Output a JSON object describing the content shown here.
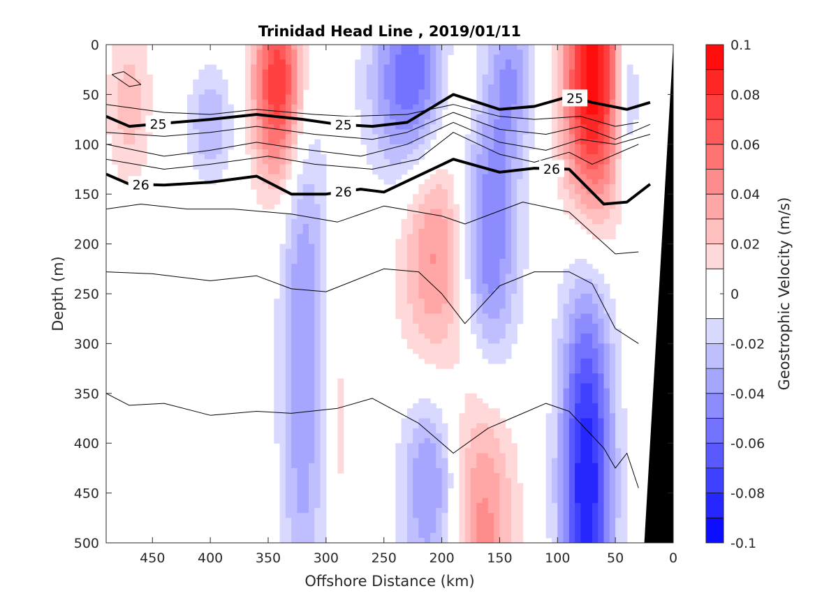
{
  "chart_data": {
    "type": "contour-section",
    "title": "Trinidad Head Line , 2019/01/11",
    "xlabel": "Offshore Distance (km)",
    "ylabel": "Depth (m)",
    "xlim": [
      490,
      0
    ],
    "ylim": [
      0,
      500
    ],
    "x_reversed": true,
    "y_reversed": true,
    "x_ticks": [
      450,
      400,
      350,
      300,
      250,
      200,
      150,
      100,
      50,
      0
    ],
    "y_ticks": [
      0,
      50,
      100,
      150,
      200,
      250,
      300,
      350,
      400,
      450,
      500
    ],
    "colorbar": {
      "label": "Geostrophic Velocity (m/s)",
      "range": [
        -0.1,
        0.1
      ],
      "ticks": [
        0.1,
        0.08,
        0.06,
        0.04,
        0.02,
        0,
        -0.02,
        -0.04,
        -0.06,
        -0.08,
        -0.1
      ],
      "tick_labels": [
        "0.1",
        "0.08",
        "0.06",
        "0.04",
        "0.02",
        "0",
        "-0.02",
        "-0.04",
        "-0.06",
        "-0.08",
        "-0.1"
      ],
      "levels": [
        -0.1,
        -0.09,
        -0.08,
        -0.07,
        -0.06,
        -0.05,
        -0.04,
        -0.03,
        -0.02,
        -0.01,
        0.01,
        0.02,
        0.03,
        0.04,
        0.05,
        0.06,
        0.07,
        0.08,
        0.09,
        0.1
      ],
      "negative_color": "#0000ff",
      "positive_color": "#ff0000",
      "zero_color": "#ffffff"
    },
    "velocity_cores": [
      {
        "x": 470,
        "y": 60,
        "sx": 14,
        "sy": 60,
        "v": 0.025
      },
      {
        "x": 420,
        "y": 330,
        "sx": 6,
        "sy": 30,
        "v": 0.008
      },
      {
        "x": 400,
        "y": 80,
        "sx": 14,
        "sy": 40,
        "v": -0.03
      },
      {
        "x": 340,
        "y": 40,
        "sx": 16,
        "sy": 70,
        "v": 0.085
      },
      {
        "x": 320,
        "y": 300,
        "sx": 14,
        "sy": 230,
        "v": -0.04
      },
      {
        "x": 290,
        "y": 380,
        "sx": 8,
        "sy": 90,
        "v": 0.015
      },
      {
        "x": 225,
        "y": 40,
        "sx": 25,
        "sy": 70,
        "v": -0.065
      },
      {
        "x": 205,
        "y": 200,
        "sx": 22,
        "sy": 100,
        "v": 0.045
      },
      {
        "x": 185,
        "y": 40,
        "sx": 12,
        "sy": 35,
        "v": 0.02
      },
      {
        "x": 160,
        "y": 200,
        "sx": 18,
        "sy": 100,
        "v": -0.055
      },
      {
        "x": 140,
        "y": 30,
        "sx": 14,
        "sy": 60,
        "v": -0.035
      },
      {
        "x": 210,
        "y": 440,
        "sx": 18,
        "sy": 75,
        "v": -0.045
      },
      {
        "x": 165,
        "y": 480,
        "sx": 20,
        "sy": 110,
        "v": 0.045
      },
      {
        "x": 70,
        "y": 40,
        "sx": 18,
        "sy": 100,
        "v": 0.1
      },
      {
        "x": 75,
        "y": 440,
        "sx": 16,
        "sy": 150,
        "v": -0.09
      },
      {
        "x": 40,
        "y": 50,
        "sx": 8,
        "sy": 60,
        "v": -0.035
      }
    ],
    "isopycnals": [
      {
        "label": "25",
        "bold": true,
        "x": [
          490,
          470,
          450,
          400,
          360,
          320,
          290,
          260,
          230,
          190,
          150,
          120,
          90,
          70,
          40,
          20
        ],
        "y": [
          72,
          82,
          80,
          75,
          70,
          75,
          80,
          82,
          78,
          50,
          65,
          62,
          52,
          58,
          65,
          58
        ]
      },
      {
        "label": "26",
        "bold": true,
        "x": [
          490,
          470,
          440,
          400,
          360,
          330,
          300,
          270,
          250,
          190,
          150,
          120,
          90,
          60,
          40,
          20
        ],
        "y": [
          130,
          140,
          141,
          138,
          132,
          150,
          150,
          145,
          148,
          115,
          128,
          124,
          125,
          160,
          158,
          140
        ]
      },
      {
        "label": "",
        "bold": false,
        "x": [
          490,
          440,
          400,
          360,
          310,
          280,
          230,
          190,
          150,
          120,
          80,
          50,
          30
        ],
        "y": [
          60,
          68,
          70,
          65,
          70,
          72,
          70,
          60,
          72,
          75,
          72,
          82,
          78
        ]
      },
      {
        "label": "",
        "bold": false,
        "x": [
          490,
          440,
          400,
          360,
          310,
          260,
          230,
          190,
          150,
          110,
          80,
          50,
          20
        ],
        "y": [
          88,
          92,
          88,
          82,
          90,
          95,
          88,
          68,
          85,
          90,
          82,
          95,
          80
        ]
      },
      {
        "label": "",
        "bold": false,
        "x": [
          490,
          440,
          400,
          360,
          320,
          270,
          230,
          190,
          150,
          110,
          80,
          50,
          20
        ],
        "y": [
          100,
          112,
          106,
          98,
          105,
          112,
          100,
          78,
          98,
          106,
          95,
          100,
          90
        ]
      },
      {
        "label": "",
        "bold": false,
        "x": [
          490,
          440,
          400,
          350,
          310,
          260,
          220,
          190,
          150,
          120,
          90,
          70,
          30
        ],
        "y": [
          115,
          125,
          120,
          112,
          120,
          125,
          115,
          88,
          110,
          118,
          108,
          120,
          100
        ]
      },
      {
        "label": "",
        "bold": false,
        "x": [
          490,
          460,
          420,
          380,
          330,
          290,
          250,
          200,
          180,
          130,
          90,
          50,
          30
        ],
        "y": [
          165,
          160,
          165,
          165,
          170,
          178,
          162,
          172,
          180,
          158,
          168,
          210,
          208
        ]
      },
      {
        "label": "",
        "bold": false,
        "x": [
          490,
          450,
          400,
          360,
          330,
          300,
          250,
          220,
          200,
          180,
          150,
          120,
          90,
          70,
          50,
          30
        ],
        "y": [
          228,
          230,
          237,
          232,
          245,
          248,
          225,
          228,
          250,
          280,
          242,
          228,
          228,
          240,
          285,
          300
        ]
      },
      {
        "label": "",
        "bold": false,
        "x": [
          490,
          470,
          440,
          400,
          360,
          330,
          290,
          260,
          220,
          190,
          160,
          140,
          110,
          90,
          60,
          50,
          40,
          30
        ],
        "y": [
          350,
          362,
          360,
          372,
          368,
          370,
          365,
          355,
          380,
          410,
          385,
          375,
          360,
          368,
          405,
          425,
          410,
          445
        ]
      },
      {
        "label": "",
        "bold": false,
        "x": [
          485,
          475,
          465,
          460,
          470,
          485
        ],
        "y": [
          30,
          27,
          35,
          40,
          42,
          30
        ]
      }
    ],
    "bathymetry_x": [
      25,
      0,
      0
    ],
    "bathymetry_top": [
      500,
      0,
      500
    ]
  }
}
